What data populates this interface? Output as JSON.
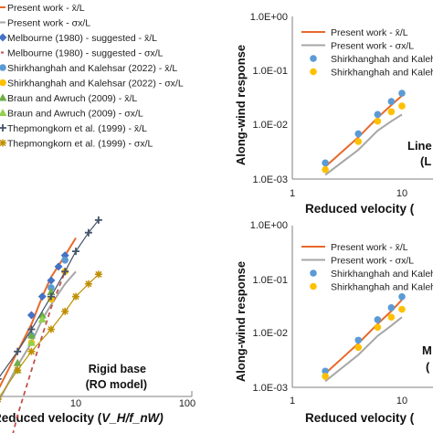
{
  "chart_data": [
    {
      "type": "line",
      "xlabel": "Reduced velocity (V_H/f_nW)",
      "xlabel_visible": "Reduced velocity (",
      "xlabel_var": "V_H/f_nW)",
      "x_scale": "log",
      "xlim": [
        1,
        100
      ],
      "x_ticks": [
        "10",
        "100"
      ],
      "panel_text": [
        "Rigid base",
        "(RO model)"
      ],
      "legend": [
        "Present work - x̄/L",
        "Present work - σx/L",
        "Melbourne (1980) - suggested - x̄/L",
        "Melbourne (1980) - suggested - σx/L",
        "Shirkhanghah and Kalehsar (2022) - x̄/L",
        "Shirkhanghah and Kalehsar (2022) - σx/L",
        "Braun and Awruch (2009) - x̄/L",
        "Braun and Awruch (2009) - σx/L",
        "Thepmongkorn et al. (1999) - x̄/L",
        "Thepmongkorn et al. (1999) - σx/L"
      ],
      "series": [
        {
          "name": "Present work - x̄/L",
          "color": "#e8692b",
          "x": [
            2,
            3,
            4,
            5,
            6,
            8,
            10
          ],
          "y": [
            0.0015,
            0.004,
            0.008,
            0.016,
            0.026,
            0.045,
            0.07
          ]
        },
        {
          "name": "Present work - σx/L",
          "color": "#a6a6a6",
          "x": [
            2,
            3,
            4,
            5,
            6,
            8,
            10
          ],
          "y": [
            0.0011,
            0.0028,
            0.005,
            0.009,
            0.013,
            0.022,
            0.03
          ]
        },
        {
          "name": "Melbourne (1980) - suggested - x̄/L",
          "color": "#4472c4",
          "x": [
            4,
            5,
            6,
            7,
            8
          ],
          "y": [
            0.01,
            0.016,
            0.024,
            0.034,
            0.045
          ]
        },
        {
          "name": "Melbourne (1980) - suggested - σx/L",
          "color": "#c0504d",
          "x": [
            2.6,
            3,
            4,
            5,
            6,
            8
          ],
          "y": [
            0.0004,
            0.0008,
            0.0025,
            0.006,
            0.012,
            0.03
          ]
        },
        {
          "name": "Shirkhanghah and Kalehsar (2022) - x̄/L",
          "color": "#5b9bd5",
          "x": [
            4,
            6,
            8
          ],
          "y": [
            0.006,
            0.02,
            0.04
          ]
        },
        {
          "name": "Shirkhanghah and Kalehsar (2022) - σx/L",
          "color": "#ffc000",
          "x": [
            4,
            6,
            8
          ],
          "y": [
            0.005,
            0.015,
            0.03
          ]
        },
        {
          "name": "Braun and Awruch (2009) - x̄/L",
          "color": "#70ad47",
          "x": [
            3,
            4,
            5,
            6
          ],
          "y": [
            0.003,
            0.006,
            0.01,
            0.018
          ]
        },
        {
          "name": "Braun and Awruch (2009) - σx/L",
          "color": "#92d050",
          "x": [
            3,
            4,
            5
          ],
          "y": [
            0.0025,
            0.005,
            0.009
          ]
        },
        {
          "name": "Thepmongkorn et al. (1999) - x̄/L",
          "color": "#44546a",
          "x": [
            2,
            3,
            4,
            6,
            8,
            10,
            13,
            16
          ],
          "y": [
            0.002,
            0.004,
            0.007,
            0.016,
            0.03,
            0.05,
            0.08,
            0.11
          ]
        },
        {
          "name": "Thepmongkorn et al. (1999) - σx/L",
          "color": "#bf8f00",
          "x": [
            2,
            3,
            4,
            6,
            8,
            10,
            13,
            16
          ],
          "y": [
            0.0012,
            0.0025,
            0.004,
            0.007,
            0.011,
            0.016,
            0.022,
            0.028
          ]
        }
      ]
    },
    {
      "type": "line",
      "ylabel": "Along-wind response",
      "xlabel": "Reduced velocity (",
      "x_scale": "log",
      "y_scale": "log",
      "xlim": [
        1,
        20
      ],
      "ylim": [
        0.001,
        1
      ],
      "x_ticks": [
        "1",
        "10"
      ],
      "y_ticks": [
        "1.0E-03",
        "1.0E-02",
        "1.0E-01",
        "1.0E+00"
      ],
      "panel_text": [
        "Line",
        "(L"
      ],
      "legend": [
        "Present work - x̄/L",
        "Present work - σx/L",
        "Shirkhanghah and Kalehsar",
        "Shirkhanghah and Kalehsar"
      ],
      "series": [
        {
          "name": "Present work - x̄/L",
          "color": "#e8692b",
          "x": [
            2,
            4,
            6,
            8,
            10
          ],
          "y": [
            0.0017,
            0.006,
            0.014,
            0.024,
            0.036
          ]
        },
        {
          "name": "Present work - σx/L",
          "color": "#a6a6a6",
          "x": [
            2,
            4,
            6,
            8,
            10
          ],
          "y": [
            0.0012,
            0.0035,
            0.008,
            0.012,
            0.016
          ]
        },
        {
          "name": "Shirkhanghah and Kalehsar",
          "color": "#5b9bd5",
          "x": [
            2,
            4,
            6,
            8,
            10
          ],
          "y": [
            0.002,
            0.007,
            0.016,
            0.028,
            0.04
          ]
        },
        {
          "name": "Shirkhanghah and Kalehsar",
          "color": "#ffc000",
          "x": [
            2,
            4,
            6,
            8,
            10
          ],
          "y": [
            0.0015,
            0.005,
            0.012,
            0.018,
            0.023
          ]
        }
      ]
    },
    {
      "type": "line",
      "ylabel": "Along-wind response",
      "xlabel": "Reduced velocity (",
      "x_scale": "log",
      "y_scale": "log",
      "xlim": [
        1,
        20
      ],
      "ylim": [
        0.001,
        1
      ],
      "x_ticks": [
        "1",
        "10"
      ],
      "y_ticks": [
        "1.0E-03",
        "1.0E-02",
        "1.0E-01",
        "1.0E+00"
      ],
      "panel_text": [
        "M",
        "("
      ],
      "legend": [
        "Present work - x̄/L",
        "Present work - σx/L",
        "Shirkhanghah and Kaleh",
        "Shirkhanghah and Kaleh"
      ],
      "series": [
        {
          "name": "Present work - x̄/L",
          "color": "#e8692b",
          "x": [
            2,
            4,
            6,
            8,
            10
          ],
          "y": [
            0.0018,
            0.0065,
            0.015,
            0.026,
            0.042
          ]
        },
        {
          "name": "Present work - σx/L",
          "color": "#a6a6a6",
          "x": [
            2,
            4,
            6,
            8,
            10
          ],
          "y": [
            0.0013,
            0.004,
            0.009,
            0.014,
            0.02
          ]
        },
        {
          "name": "Shirkhanghah and Kaleh",
          "color": "#5b9bd5",
          "x": [
            2,
            4,
            6,
            8,
            10
          ],
          "y": [
            0.002,
            0.0075,
            0.018,
            0.03,
            0.048
          ]
        },
        {
          "name": "Shirkhanghah and Kaleh",
          "color": "#ffc000",
          "x": [
            2,
            4,
            6,
            8,
            10
          ],
          "y": [
            0.0016,
            0.0055,
            0.013,
            0.02,
            0.028
          ]
        }
      ]
    }
  ]
}
